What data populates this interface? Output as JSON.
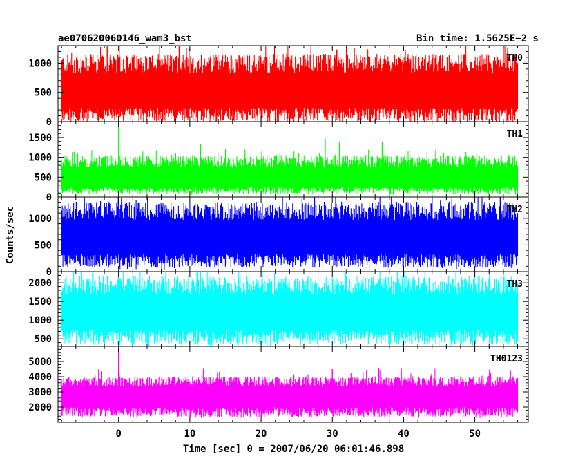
{
  "header": {
    "title": "ae070620060146_wam3_bst",
    "bin_time": "Bin time: 1.5625E−2 s"
  },
  "chart_data": {
    "type": "line",
    "xlabel": "Time [sec] 0 = 2007/06/20 06:01:46.898",
    "ylabel": "Counts/sec",
    "xlim": [
      -8.5,
      57.5
    ],
    "x_range": [
      -8,
      56
    ],
    "bin_time": 0.015625,
    "x_ticks": [
      0,
      10,
      20,
      30,
      40,
      50
    ],
    "x_tick_labels": [
      "0",
      "10",
      "20",
      "30",
      "40",
      "50"
    ],
    "grid": false,
    "panels": [
      {
        "name": "TH0",
        "color": "#ff0000",
        "ylim": [
          0,
          1300
        ],
        "y_ticks": [
          0,
          500,
          1000
        ],
        "y_tick_labels": [
          "0",
          "500",
          "1000"
        ],
        "baseline": 500,
        "low": 20,
        "high": 1100,
        "spikes": [
          {
            "x": -1.6,
            "y": 1300
          },
          {
            "x": 8.5,
            "y": 1300
          },
          {
            "x": 27,
            "y": 1300
          },
          {
            "x": 54,
            "y": 1300
          }
        ]
      },
      {
        "name": "TH1",
        "color": "#00ff00",
        "ylim": [
          0,
          1900
        ],
        "y_ticks": [
          0,
          500,
          1000,
          1500
        ],
        "y_tick_labels": [
          "0",
          "500",
          "1000",
          "1500"
        ],
        "baseline": 420,
        "low": 100,
        "high": 1000,
        "spikes": [
          {
            "x": 0,
            "y": 1900
          },
          {
            "x": 29,
            "y": 1470
          },
          {
            "x": 31,
            "y": 1380
          },
          {
            "x": 37,
            "y": 1380
          },
          {
            "x": 11.5,
            "y": 1330
          }
        ]
      },
      {
        "name": "TH2",
        "color": "#0000ff",
        "ylim": [
          0,
          1400
        ],
        "y_ticks": [
          0,
          500,
          1000
        ],
        "y_tick_labels": [
          "0",
          "500",
          "1000"
        ],
        "baseline": 620,
        "low": 100,
        "high": 1250,
        "spikes": [
          {
            "x": -4.8,
            "y": 1400
          },
          {
            "x": 0,
            "y": 1400
          },
          {
            "x": 27.5,
            "y": 1400
          },
          {
            "x": 44,
            "y": 1400
          }
        ]
      },
      {
        "name": "TH3",
        "color": "#00ffff",
        "ylim": [
          300,
          2300
        ],
        "y_ticks": [
          500,
          1000,
          1500,
          2000
        ],
        "y_tick_labels": [
          "500",
          "1000",
          "1500",
          "2000"
        ],
        "baseline": 1200,
        "low": 380,
        "high": 2100,
        "spikes": [
          {
            "x": 0,
            "y": 2300
          },
          {
            "x": 11,
            "y": 2300
          },
          {
            "x": 43,
            "y": 2300
          },
          {
            "x": 54,
            "y": 2300
          }
        ]
      },
      {
        "name": "TH0123",
        "color": "#ff00ff",
        "ylim": [
          1000,
          6000
        ],
        "y_ticks": [
          2000,
          3000,
          4000,
          5000
        ],
        "y_tick_labels": [
          "2000",
          "3000",
          "4000",
          "5000"
        ],
        "baseline": 2700,
        "low": 1400,
        "high": 3900,
        "spikes": [
          {
            "x": 0,
            "y": 6000
          },
          {
            "x": 36.5,
            "y": 4600
          },
          {
            "x": 30,
            "y": 4500
          },
          {
            "x": 55,
            "y": 4400
          }
        ]
      }
    ]
  }
}
